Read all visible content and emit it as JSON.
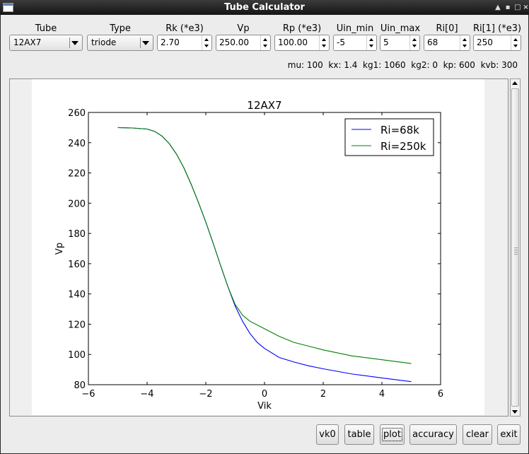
{
  "window": {
    "title": "Tube Calculator"
  },
  "fields": {
    "tube": {
      "label": "Tube",
      "value": "12AX7"
    },
    "type": {
      "label": "Type",
      "value": "triode"
    },
    "rk": {
      "label": "Rk (*e3)",
      "value": "2.70"
    },
    "vp": {
      "label": "Vp",
      "value": "250.00"
    },
    "rp": {
      "label": "Rp (*e3)",
      "value": "100.00"
    },
    "uin_min": {
      "label": "Uin_min",
      "value": "-5"
    },
    "uin_max": {
      "label": "Uin_max",
      "value": "5"
    },
    "ri0": {
      "label": "Ri[0] (*e3)",
      "value": "68"
    },
    "ri1": {
      "label": "Ri[1] (*e3)",
      "value": "250"
    }
  },
  "params_line": "mu: 100  kx: 1.4  kg1: 1060  kg2: 0  kp: 600  kvb: 300",
  "buttons": {
    "vk0": "vk0",
    "table": "table",
    "plot": "plot",
    "accuracy": "accuracy",
    "clear": "clear",
    "exit": "exit"
  },
  "chart_data": {
    "type": "line",
    "title": "12AX7",
    "xlabel": "Vik",
    "ylabel": "Vp",
    "xlim": [
      -6,
      6
    ],
    "ylim": [
      80,
      260
    ],
    "xticks": [
      -6,
      -4,
      -2,
      0,
      2,
      4,
      6
    ],
    "yticks": [
      80,
      100,
      120,
      140,
      160,
      180,
      200,
      220,
      240,
      260
    ],
    "xtick_labels": [
      "−6",
      "−4",
      "−2",
      "0",
      "2",
      "4",
      "6"
    ],
    "ytick_labels": [
      "80",
      "100",
      "120",
      "140",
      "160",
      "180",
      "200",
      "220",
      "240",
      "260"
    ],
    "grid": false,
    "legend_position": "top-right",
    "series": [
      {
        "name": "Ri=68k",
        "color": "#0000ff",
        "x": [
          -5,
          -4.5,
          -4,
          -3.75,
          -3.5,
          -3.25,
          -3,
          -2.75,
          -2.5,
          -2.25,
          -2,
          -1.75,
          -1.5,
          -1.25,
          -1,
          -0.75,
          -0.5,
          -0.25,
          0,
          0.5,
          1,
          1.5,
          2,
          3,
          4,
          5
        ],
        "y": [
          250,
          249.7,
          249,
          247.5,
          244.5,
          239.5,
          232.5,
          223.5,
          212.5,
          200.5,
          187.5,
          173.5,
          159,
          145,
          132,
          122,
          114,
          108,
          104,
          98,
          95,
          92.5,
          90.5,
          87,
          84.5,
          82
        ]
      },
      {
        "name": "Ri=250k",
        "color": "#008000",
        "x": [
          -5,
          -4.5,
          -4,
          -3.75,
          -3.5,
          -3.25,
          -3,
          -2.75,
          -2.5,
          -2.25,
          -2,
          -1.75,
          -1.5,
          -1.25,
          -1,
          -0.75,
          -0.5,
          -0.25,
          0,
          0.5,
          1,
          1.5,
          2,
          3,
          4,
          5
        ],
        "y": [
          250,
          249.7,
          249,
          247.5,
          244.5,
          239.5,
          232.5,
          223.5,
          212.5,
          200.5,
          187.5,
          173.5,
          159,
          145,
          133,
          126,
          122,
          119.5,
          117,
          112,
          108,
          105.5,
          103,
          99,
          96.5,
          94
        ]
      }
    ]
  }
}
